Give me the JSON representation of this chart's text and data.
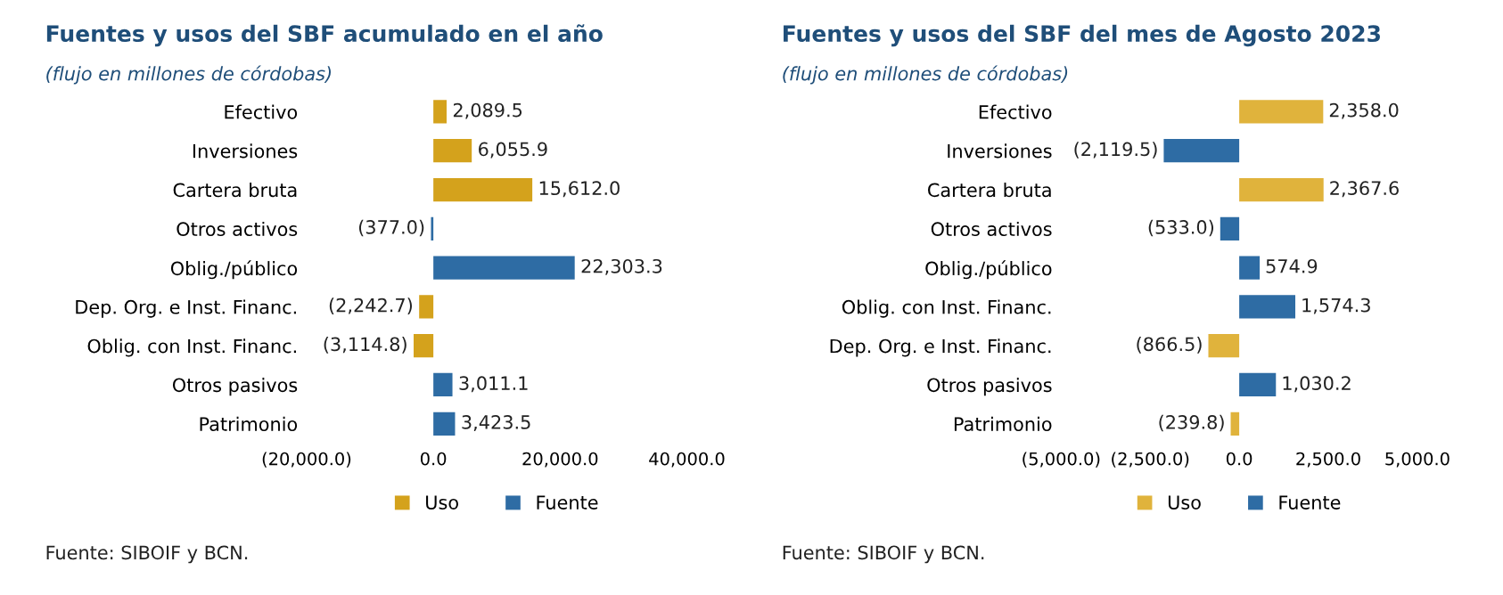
{
  "chart_data": [
    {
      "type": "bar",
      "orientation": "horizontal",
      "title": "Fuentes y usos del SBF acumulado en el año",
      "subtitle": "(flujo en millones de córdobas)",
      "categories": [
        "Efectivo",
        "Inversiones",
        "Cartera bruta",
        "Otros activos",
        "Oblig./público",
        "Dep. Org. e Inst. Financ.",
        "Oblig. con Inst. Financ.",
        "Otros pasivos",
        "Patrimonio"
      ],
      "series": [
        {
          "name": "Uso",
          "color": "#d4a21c",
          "values": [
            2089.5,
            6055.9,
            15612.0,
            null,
            null,
            -2242.7,
            -3114.8,
            null,
            null
          ],
          "value_labels": [
            "2,089.5",
            "6,055.9",
            "15,612.0",
            null,
            null,
            "(2,242.7)",
            "(3,114.8)",
            null,
            null
          ]
        },
        {
          "name": "Fuente",
          "color": "#2e6ca4",
          "values": [
            null,
            null,
            null,
            -377.0,
            22303.3,
            null,
            null,
            3011.1,
            3423.5
          ],
          "value_labels": [
            null,
            null,
            null,
            "(377.0)",
            "22,303.3",
            null,
            null,
            "3,011.1",
            "3,423.5"
          ]
        }
      ],
      "xlim": [
        -20000,
        40000
      ],
      "xticks": [
        {
          "value": -20000,
          "label": "(20,000.0)"
        },
        {
          "value": 0,
          "label": "0.0"
        },
        {
          "value": 20000,
          "label": "20,000.0"
        },
        {
          "value": 40000,
          "label": "40,000.0"
        }
      ],
      "legend": "bottom",
      "grid": false,
      "annotations": [
        "Fuente: SIBOIF y BCN."
      ]
    },
    {
      "type": "bar",
      "orientation": "horizontal",
      "title": "Fuentes y usos del SBF del mes de Agosto 2023",
      "subtitle": "(flujo en millones de córdobas)",
      "categories": [
        "Efectivo",
        "Inversiones",
        "Cartera bruta",
        "Otros activos",
        "Oblig./público",
        "Oblig. con Inst. Financ.",
        "Dep. Org. e Inst. Financ.",
        "Otros pasivos",
        "Patrimonio"
      ],
      "series": [
        {
          "name": "Uso",
          "color": "#e0b33c",
          "values": [
            2358.0,
            null,
            2367.6,
            null,
            null,
            null,
            -866.5,
            null,
            -239.8
          ],
          "value_labels": [
            "2,358.0",
            null,
            "2,367.6",
            null,
            null,
            null,
            "(866.5)",
            null,
            "(239.8)"
          ]
        },
        {
          "name": "Fuente",
          "color": "#2e6ca4",
          "values": [
            null,
            -2119.5,
            null,
            -533.0,
            574.9,
            1574.3,
            null,
            1030.2,
            null
          ],
          "value_labels": [
            null,
            "(2,119.5)",
            null,
            "(533.0)",
            "574.9",
            "1,574.3",
            null,
            "1,030.2",
            null
          ]
        }
      ],
      "xlim": [
        -5000,
        5000
      ],
      "xticks": [
        {
          "value": -5000,
          "label": "(5,000.0)"
        },
        {
          "value": -2500,
          "label": "(2,500.0)"
        },
        {
          "value": 0,
          "label": "0.0"
        },
        {
          "value": 2500,
          "label": "2,500.0"
        },
        {
          "value": 5000,
          "label": "5,000.0"
        }
      ],
      "legend": "bottom",
      "grid": false,
      "annotations": [
        "Fuente: SIBOIF y BCN."
      ]
    }
  ]
}
